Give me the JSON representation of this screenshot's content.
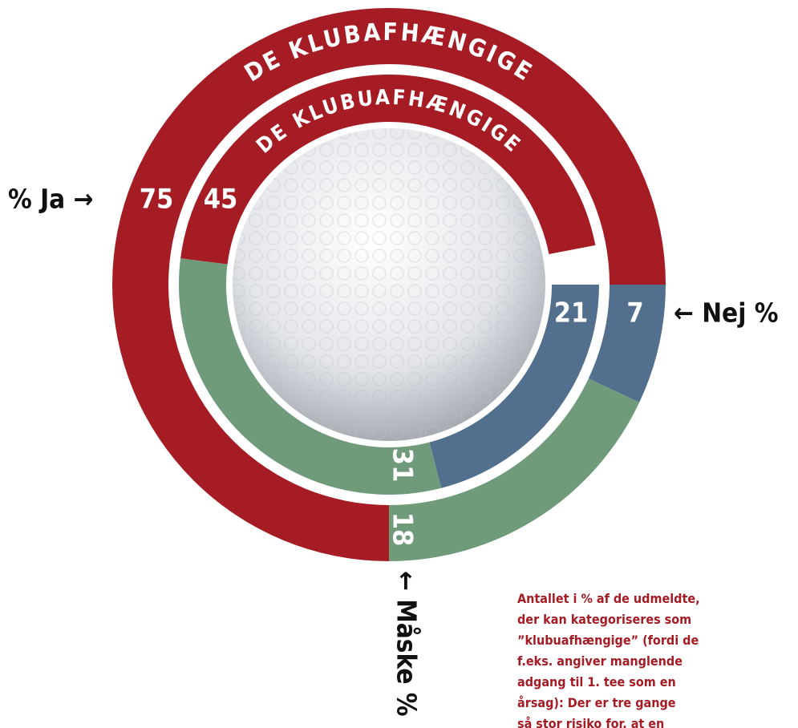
{
  "chart_data": {
    "type": "donut",
    "categories": [
      "← Nej %",
      "← Måske %",
      "% Ja →"
    ],
    "colors": [
      "#52708e",
      "#6f9b7a",
      "#a51c24"
    ],
    "series": [
      {
        "name": "DE KLUBAFHÆNGIGE",
        "values": [
          7,
          18,
          75
        ]
      },
      {
        "name": "DE KLUBUAFHÆNGIGE",
        "values": [
          21,
          31,
          45
        ]
      }
    ],
    "note": [
      "Antallet i % af de udmeldte,",
      "der kan kategoriseres som",
      "”klubuafhængige” (fordi de",
      "f.eks. angiver manglende",
      "adgang til 1. tee som en",
      "årsag): Der er tre gange",
      "så stor risiko for, at en"
    ]
  }
}
